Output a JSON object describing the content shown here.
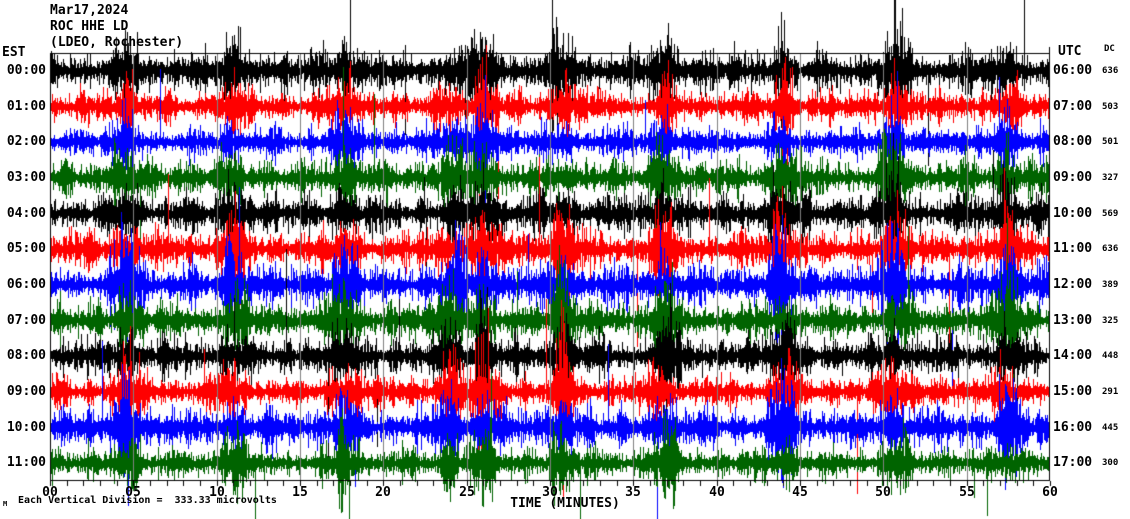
{
  "header": {
    "date": "Mar17,2024",
    "station": "ROC HHE LD",
    "network": "(LDEO, Rochester)"
  },
  "axes": {
    "left_label": "EST",
    "right_label": "UTC",
    "dc_label": "DC",
    "x_title": "TIME (MINUTES)",
    "x_ticks": [
      "00",
      "05",
      "10",
      "15",
      "20",
      "25",
      "30",
      "35",
      "40",
      "45",
      "50",
      "55",
      "60"
    ],
    "footer_note": "Each Vertical Division =  333.33 microvolts",
    "corner_mark": "M"
  },
  "chart_data": {
    "type": "line",
    "title": "ROC HHE LD (LDEO, Rochester) helicorder seismogram, Mar17,2024",
    "xlabel": "TIME (MINUTES)",
    "x_range_minutes": [
      0,
      60
    ],
    "x_tick_step_minutes": 5,
    "minutes_per_row": 60,
    "vertical_division_microvolts": 333.33,
    "grid_on": true,
    "grid_minutes": [
      5,
      10,
      15,
      20,
      25,
      30,
      35,
      40,
      45,
      50,
      55
    ],
    "grid_color": "#808080",
    "frame_color": "#000000",
    "background_color": "#ffffff",
    "trace_palette": [
      "#000000",
      "#ff0000",
      "#0000ff",
      "#006400"
    ],
    "burst_minutes": [
      4.6,
      10.9,
      17.7,
      24.0,
      26.1,
      30.8,
      36.8,
      44.0,
      50.6,
      57.4
    ],
    "rows": [
      {
        "est": "00:00",
        "utc": "06:00",
        "dc": 636,
        "color": "#000000"
      },
      {
        "est": "01:00",
        "utc": "07:00",
        "dc": 503,
        "color": "#ff0000"
      },
      {
        "est": "02:00",
        "utc": "08:00",
        "dc": 501,
        "color": "#0000ff"
      },
      {
        "est": "03:00",
        "utc": "09:00",
        "dc": 327,
        "color": "#006400"
      },
      {
        "est": "04:00",
        "utc": "10:00",
        "dc": 569,
        "color": "#000000"
      },
      {
        "est": "05:00",
        "utc": "11:00",
        "dc": 636,
        "color": "#ff0000"
      },
      {
        "est": "06:00",
        "utc": "12:00",
        "dc": 389,
        "color": "#0000ff"
      },
      {
        "est": "07:00",
        "utc": "13:00",
        "dc": 325,
        "color": "#006400"
      },
      {
        "est": "08:00",
        "utc": "14:00",
        "dc": 448,
        "color": "#000000"
      },
      {
        "est": "09:00",
        "utc": "15:00",
        "dc": 291,
        "color": "#ff0000"
      },
      {
        "est": "10:00",
        "utc": "16:00",
        "dc": 445,
        "color": "#0000ff"
      },
      {
        "est": "11:00",
        "utc": "17:00",
        "dc": 300,
        "color": "#006400"
      }
    ]
  }
}
